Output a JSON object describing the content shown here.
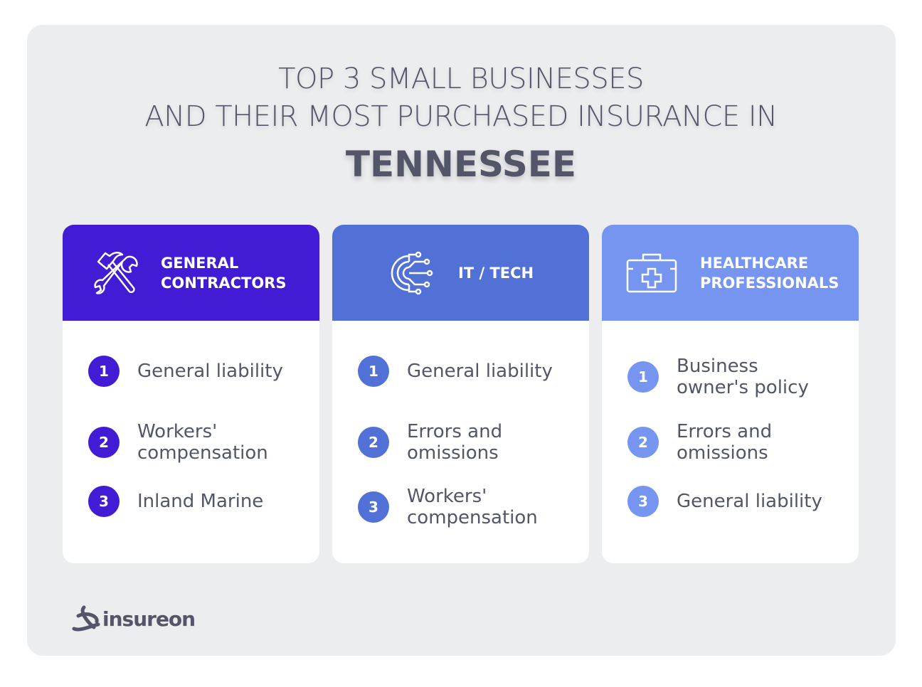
{
  "title": {
    "line1": "TOP 3 SMALL BUSINESSES",
    "line2": "AND THEIR MOST PURCHASED INSURANCE IN",
    "state": "TENNESSEE"
  },
  "cards": [
    {
      "title": "GENERAL\nCONTRACTORS",
      "icon": "hammer-wrench-icon",
      "color": "#421bd4",
      "items": [
        "General liability",
        "Workers'\ncompensation",
        "Inland Marine"
      ]
    },
    {
      "title": "IT / TECH",
      "icon": "gear-circuit-icon",
      "color": "#5271d6",
      "items": [
        "General liability",
        "Errors and\nomissions",
        "Workers'\ncompensation"
      ]
    },
    {
      "title": "HEALTHCARE\nPROFESSIONALS",
      "icon": "medical-kit-icon",
      "color": "#7595f0",
      "items": [
        "Business\nowner's policy",
        "Errors and\nomissions",
        "General liability"
      ]
    }
  ],
  "numbers": [
    "1",
    "2",
    "3"
  ],
  "logo": {
    "text": "insureon"
  }
}
